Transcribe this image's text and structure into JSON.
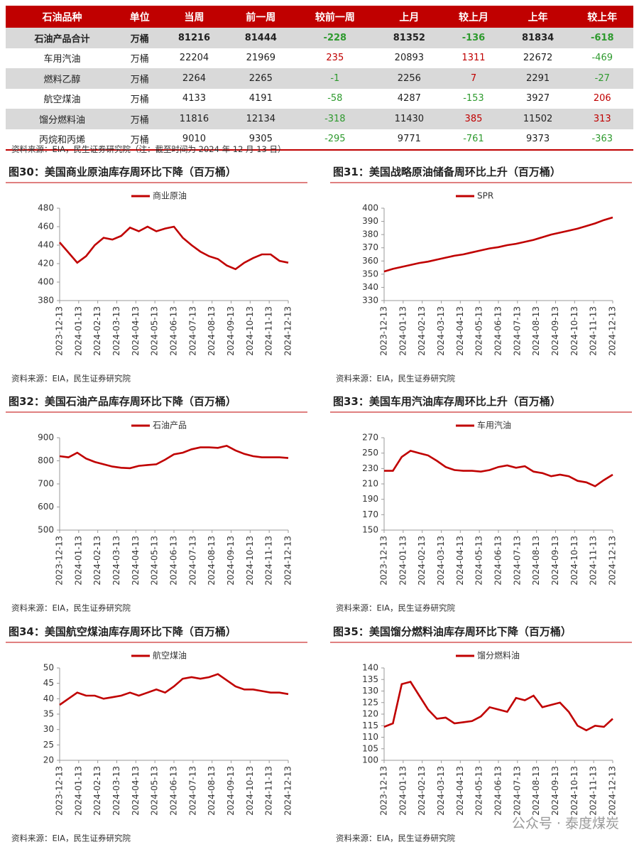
{
  "table": {
    "headers": [
      "石油品种",
      "单位",
      "当周",
      "前一周",
      "较前一周",
      "上月",
      "较上月",
      "上年",
      "较上年"
    ],
    "rows": [
      [
        "石油产品合计",
        "万桶",
        "81216",
        "81444",
        "-228",
        "81352",
        "-136",
        "81834",
        "-618"
      ],
      [
        "车用汽油",
        "万桶",
        "22204",
        "21969",
        "235",
        "20893",
        "1311",
        "22672",
        "-469"
      ],
      [
        "燃料乙醇",
        "万桶",
        "2264",
        "2265",
        "-1",
        "2256",
        "7",
        "2291",
        "-27"
      ],
      [
        "航空煤油",
        "万桶",
        "4133",
        "4191",
        "-58",
        "4287",
        "-153",
        "3927",
        "206"
      ],
      [
        "馏分燃料油",
        "万桶",
        "11816",
        "12134",
        "-318",
        "11430",
        "385",
        "11502",
        "313"
      ],
      [
        "丙烷和丙烯",
        "万桶",
        "9010",
        "9305",
        "-295",
        "9771",
        "-761",
        "9373",
        "-363"
      ]
    ],
    "source": "资料来源：EIA，民生证券研究院（注：截至时间为 2024 年 12 月 13 日）"
  },
  "chart_data": [
    {
      "type": "line",
      "title": "图30：美国商业原油库存周环比下降（百万桶）",
      "legend": "top",
      "xticks": [
        "2023-12-13",
        "2024-01-13",
        "2024-02-13",
        "2024-03-13",
        "2024-04-13",
        "2024-05-13",
        "2024-06-13",
        "2024-07-13",
        "2024-08-13",
        "2024-09-13",
        "2024-10-13",
        "2024-11-13",
        "2024-12-13"
      ],
      "series": [
        {
          "name": "商业原油",
          "color": "#c00000",
          "values": [
            443,
            432,
            421,
            428,
            440,
            448,
            446,
            450,
            459,
            455,
            460,
            455,
            458,
            460,
            448,
            440,
            433,
            428,
            425,
            418,
            414,
            421,
            426,
            430,
            430,
            423,
            421
          ]
        }
      ],
      "ylim": [
        380,
        480
      ],
      "yticks": [
        380,
        400,
        420,
        440,
        460,
        480
      ],
      "source": "资料来源：EIA，民生证券研究院"
    },
    {
      "type": "line",
      "title": "图31：美国战略原油储备周环比上升（百万桶）",
      "legend": "top",
      "xticks": [
        "2023-12-13",
        "2024-01-13",
        "2024-02-13",
        "2024-03-13",
        "2024-04-13",
        "2024-05-13",
        "2024-06-13",
        "2024-07-13",
        "2024-08-13",
        "2024-09-13",
        "2024-10-13",
        "2024-11-13",
        "2024-12-13"
      ],
      "series": [
        {
          "name": "SPR",
          "color": "#c00000",
          "values": [
            352,
            354,
            355.5,
            357,
            358.5,
            359.5,
            361,
            362.5,
            364,
            365,
            366.5,
            368,
            369.5,
            370.5,
            372,
            373,
            374.5,
            376,
            378,
            380,
            381.5,
            383,
            384.5,
            386.5,
            388.5,
            391,
            393
          ]
        }
      ],
      "ylim": [
        330,
        400
      ],
      "yticks": [
        330,
        340,
        350,
        360,
        370,
        380,
        390,
        400
      ],
      "source": "资料来源：EIA，民生证券研究院"
    },
    {
      "type": "line",
      "title": "图32：美国石油产品库存周环比下降（百万桶）",
      "legend": "top",
      "xticks": [
        "2023-12-13",
        "2024-01-13",
        "2024-02-13",
        "2024-03-13",
        "2024-04-13",
        "2024-05-13",
        "2024-06-13",
        "2024-07-13",
        "2024-08-13",
        "2024-09-13",
        "2024-10-13",
        "2024-11-13",
        "2024-12-13"
      ],
      "series": [
        {
          "name": "石油产品",
          "color": "#c00000",
          "values": [
            820,
            815,
            835,
            810,
            795,
            785,
            775,
            770,
            768,
            778,
            782,
            785,
            805,
            828,
            835,
            850,
            858,
            858,
            856,
            865,
            845,
            830,
            820,
            815,
            815,
            815,
            812
          ]
        }
      ],
      "ylim": [
        500,
        900
      ],
      "yticks": [
        500,
        600,
        700,
        800,
        900
      ],
      "source": "资料来源：EIA，民生证券研究院"
    },
    {
      "type": "line",
      "title": "图33：美国车用汽油库存周环比上升（百万桶）",
      "legend": "top",
      "xticks": [
        "2023-12-13",
        "2024-01-13",
        "2024-02-13",
        "2024-03-13",
        "2024-04-13",
        "2024-05-13",
        "2024-06-13",
        "2024-07-13",
        "2024-08-13",
        "2024-09-13",
        "2024-10-13",
        "2024-11-13",
        "2024-12-13"
      ],
      "series": [
        {
          "name": "车用汽油",
          "color": "#c00000",
          "values": [
            227,
            227,
            245,
            253,
            250,
            247,
            240,
            232,
            228,
            227,
            227,
            226,
            228,
            232,
            234,
            231,
            233,
            226,
            224,
            220,
            222,
            220,
            214,
            212,
            207,
            215,
            222
          ]
        }
      ],
      "ylim": [
        150,
        270
      ],
      "yticks": [
        150,
        170,
        190,
        210,
        230,
        250,
        270
      ],
      "source": "资料来源：EIA，民生证券研究院"
    },
    {
      "type": "line",
      "title": "图34：美国航空煤油库存周环比下降（百万桶）",
      "legend": "top",
      "xticks": [
        "2023-12-13",
        "2024-01-13",
        "2024-02-13",
        "2024-03-13",
        "2024-04-13",
        "2024-05-13",
        "2024-06-13",
        "2024-07-13",
        "2024-08-13",
        "2024-09-13",
        "2024-10-13",
        "2024-11-13",
        "2024-12-13"
      ],
      "series": [
        {
          "name": "航空煤油",
          "color": "#c00000",
          "values": [
            38,
            40,
            42,
            41,
            41,
            40,
            40.5,
            41,
            42,
            41,
            42,
            43,
            42,
            44,
            46.5,
            47,
            46.5,
            47,
            48,
            46,
            44,
            43,
            43,
            42.5,
            42,
            42,
            41.5
          ]
        }
      ],
      "ylim": [
        20,
        50
      ],
      "yticks": [
        20,
        25,
        30,
        35,
        40,
        45,
        50
      ],
      "source": "资料来源：EIA，民生证券研究院"
    },
    {
      "type": "line",
      "title": "图35：美国馏分燃料油库存周环比下降（百万桶）",
      "legend": "top",
      "xticks": [
        "2023-12-13",
        "2024-01-13",
        "2024-02-13",
        "2024-03-13",
        "2024-04-13",
        "2024-05-13",
        "2024-06-13",
        "2024-07-13",
        "2024-08-13",
        "2024-09-13",
        "2024-10-13",
        "2024-11-13",
        "2024-12-13"
      ],
      "series": [
        {
          "name": "馏分燃料油",
          "color": "#c00000",
          "values": [
            114.5,
            116,
            133,
            134,
            128,
            122,
            118,
            118.5,
            116,
            116.5,
            117,
            119,
            123,
            122,
            121,
            127,
            126,
            128,
            123,
            124,
            125,
            121,
            115,
            113,
            115,
            114.5,
            118
          ]
        }
      ],
      "ylim": [
        100,
        140
      ],
      "yticks": [
        100,
        105,
        110,
        115,
        120,
        125,
        130,
        135,
        140
      ],
      "source": "资料来源：EIA，民生证券研究院"
    }
  ],
  "watermark": "公众号 · 泰度煤炭"
}
